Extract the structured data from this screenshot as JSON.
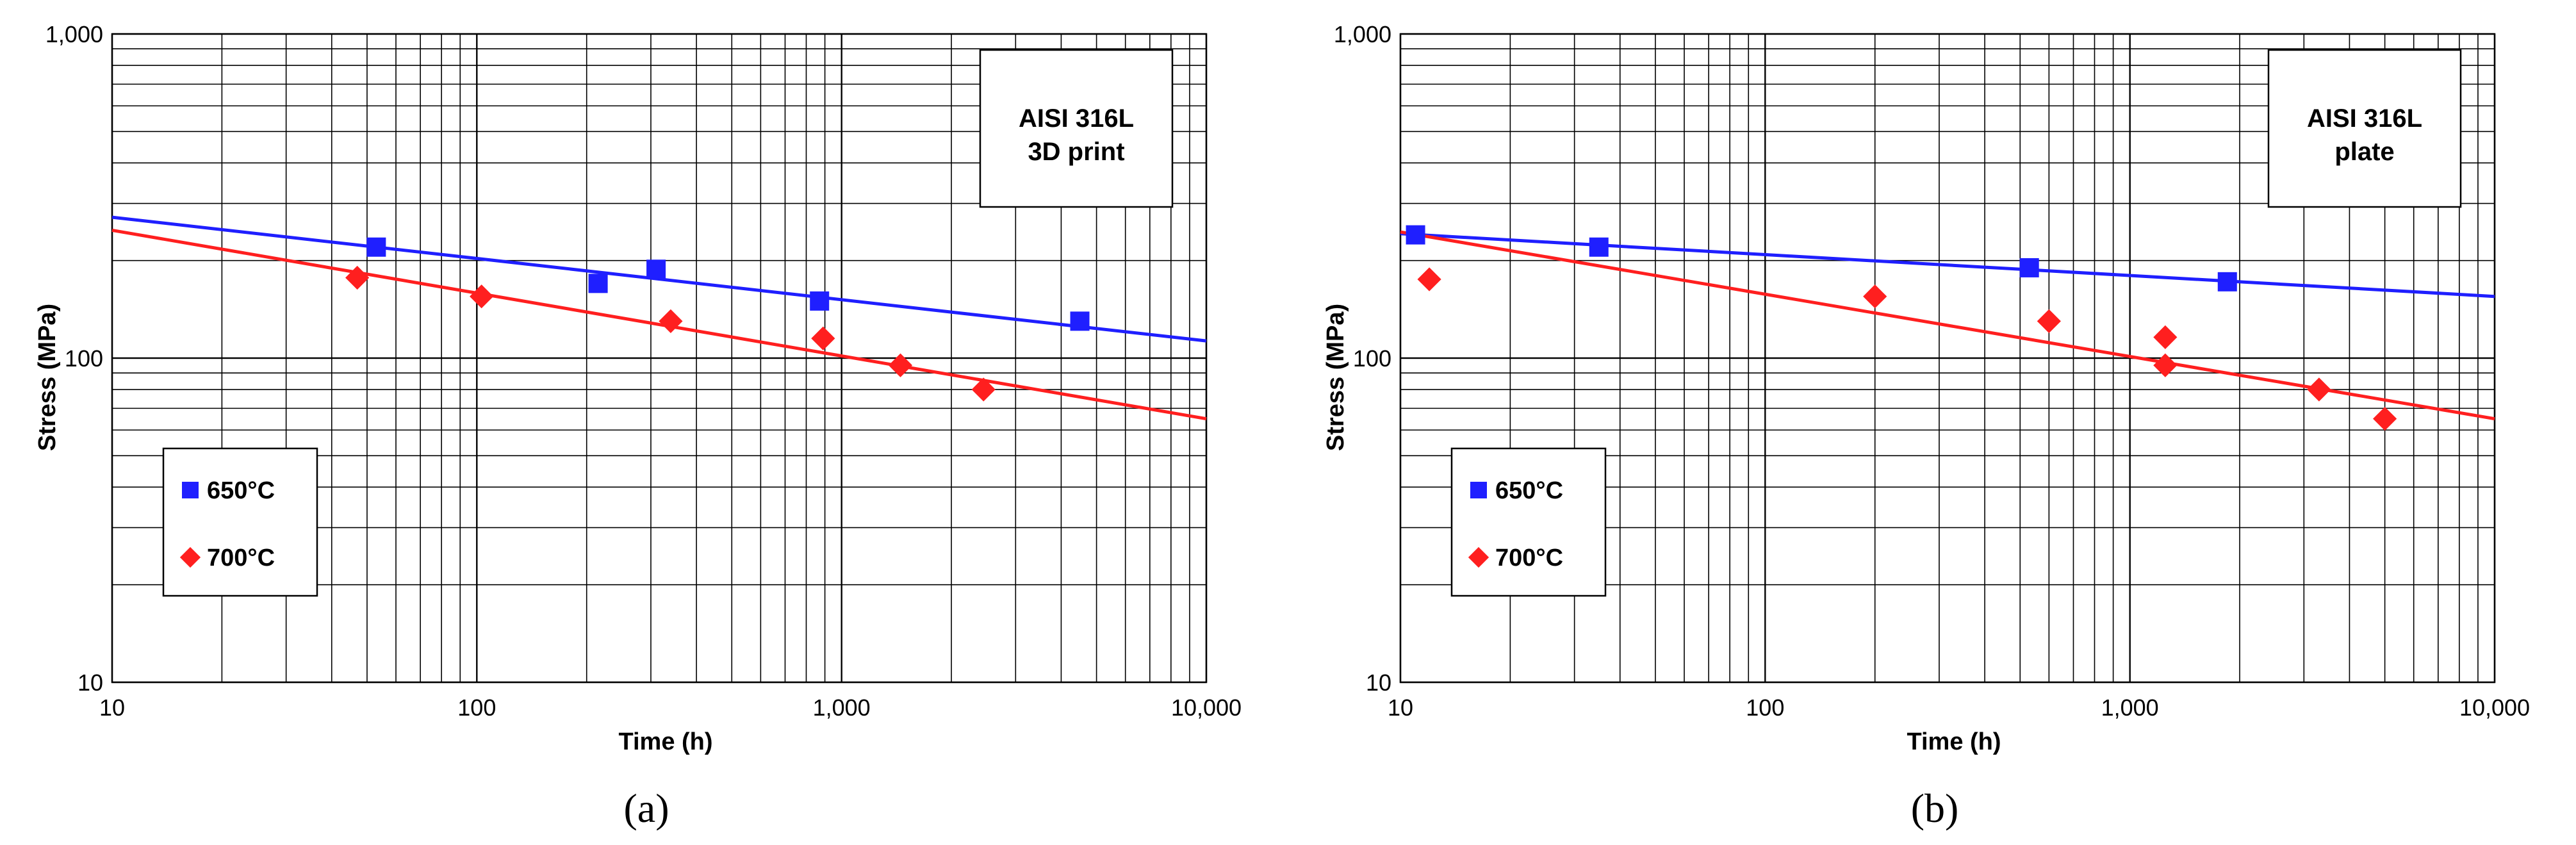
{
  "chart_data": [
    {
      "type": "scatter",
      "panel_label": "(a)",
      "annotation": [
        "AISI 316L",
        "3D print"
      ],
      "xlabel": "Time (h)",
      "ylabel": "Stress (MPa)",
      "xscale": "log",
      "yscale": "log",
      "xlim": [
        10,
        10000
      ],
      "ylim": [
        10,
        1000
      ],
      "xticks": [
        "10",
        "100",
        "1,000",
        "10,000"
      ],
      "yticks": [
        "10",
        "100",
        "1,000"
      ],
      "grid": true,
      "legend_position": "bottom-left",
      "series": [
        {
          "name": "650°C",
          "color": "#1f1fff",
          "marker": "square",
          "points": [
            [
              53,
              220
            ],
            [
              215,
              170
            ],
            [
              310,
              188
            ],
            [
              870,
              150
            ],
            [
              4500,
              130
            ]
          ],
          "trendline": [
            [
              10,
              272
            ],
            [
              10000,
              113
            ]
          ]
        },
        {
          "name": "700°C",
          "color": "#ff1f1f",
          "marker": "diamond",
          "points": [
            [
              47,
              177
            ],
            [
              103,
              155
            ],
            [
              340,
              130
            ],
            [
              890,
              115
            ],
            [
              1450,
              95
            ],
            [
              2450,
              80
            ]
          ],
          "trendline": [
            [
              10,
              248
            ],
            [
              10000,
              65
            ]
          ]
        }
      ]
    },
    {
      "type": "scatter",
      "panel_label": "(b)",
      "annotation": [
        "AISI 316L",
        "plate"
      ],
      "xlabel": "Time (h)",
      "ylabel": "Stress (MPa)",
      "xscale": "log",
      "yscale": "log",
      "xlim": [
        10,
        10000
      ],
      "ylim": [
        10,
        1000
      ],
      "xticks": [
        "10",
        "100",
        "1,000",
        "10,000"
      ],
      "yticks": [
        "10",
        "100",
        "1,000"
      ],
      "grid": true,
      "legend_position": "bottom-left",
      "series": [
        {
          "name": "650°C",
          "color": "#1f1fff",
          "marker": "square",
          "points": [
            [
              11,
              240
            ],
            [
              35,
              220
            ],
            [
              530,
              190
            ],
            [
              1850,
              172
            ]
          ],
          "trendline": [
            [
              10,
              242
            ],
            [
              10000,
              155
            ]
          ]
        },
        {
          "name": "700°C",
          "color": "#ff1f1f",
          "marker": "diamond",
          "points": [
            [
              12,
              175
            ],
            [
              200,
              155
            ],
            [
              600,
              130
            ],
            [
              1250,
              116
            ],
            [
              1250,
              95
            ],
            [
              3300,
              80
            ],
            [
              5000,
              65
            ]
          ],
          "trendline": [
            [
              10,
              245
            ],
            [
              10000,
              65
            ]
          ]
        }
      ]
    }
  ]
}
